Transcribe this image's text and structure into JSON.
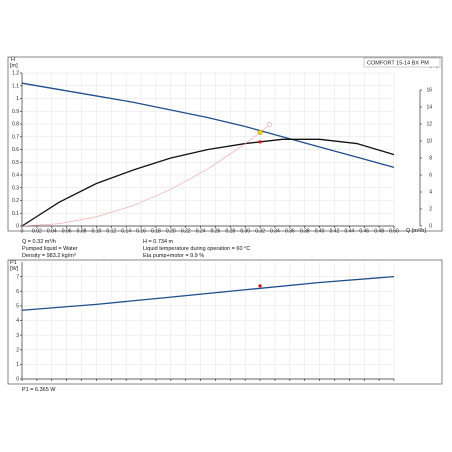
{
  "model_label": "COMFORT 15-14 BX PM",
  "top": {
    "yaxis_left_unit_top": "H",
    "yaxis_left_unit_bottom": "[m]",
    "yaxis_right_unit_top": "eta",
    "yaxis_right_unit_bottom": "[%]",
    "xaxis_unit": "Q [m³/h]",
    "info_left": [
      "Q = 0.32 m³/h",
      "Pumped liquid = Water",
      "Density = 983.2 kg/m³"
    ],
    "info_right": [
      "H = 0.734 m",
      "Liquid temperature during operation = 60 °C",
      "Eta pump+motor = 9.9 %"
    ]
  },
  "bottom": {
    "yaxis_unit_top": "P1",
    "yaxis_unit_bottom": "[W]",
    "info": "P1 = 6.365 W"
  },
  "chart_data": [
    {
      "type": "line",
      "xlim": [
        0,
        0.5
      ],
      "ylim": [
        0,
        1.2
      ],
      "ylim_right": [
        0,
        18
      ],
      "x_ticks": [
        0,
        0.02,
        0.04,
        0.06,
        0.08,
        0.1,
        0.12,
        0.14,
        0.16,
        0.18,
        0.2,
        0.22,
        0.24,
        0.26,
        0.28,
        0.3,
        0.32,
        0.34,
        0.36,
        0.38,
        0.4,
        0.42,
        0.44,
        0.46,
        0.48,
        0.5
      ],
      "x_tick_labels": [
        "0",
        "0.02",
        "0.04",
        "0.06",
        "0.08",
        "0.10",
        "0.12",
        "0.14",
        "0.16",
        "0.18",
        "0.20",
        "0.22",
        "0.24",
        "0.26",
        "0.28",
        "0.30",
        "0.32",
        "0.34",
        "0.36",
        "0.38",
        "0.40",
        "0.42",
        "0.44",
        "0.46",
        "0.48",
        "0.50"
      ],
      "y_ticks": [
        0,
        0.1,
        0.2,
        0.3,
        0.4,
        0.5,
        0.6,
        0.7,
        0.8,
        0.9,
        1.0,
        1.1,
        1.2
      ],
      "y_tick_labels": [
        "0",
        "0.1",
        "0.2",
        "0.3",
        "0.4",
        "0.5",
        "0.6",
        "0.7",
        "0.8",
        "0.9",
        "1",
        "1.1",
        "1.2"
      ],
      "y_right_ticks": [
        0,
        2,
        4,
        6,
        8,
        10,
        12,
        14,
        16
      ],
      "y_right_tick_labels": [
        "0",
        "2",
        "4",
        "6",
        "8",
        "10",
        "12",
        "14",
        "16"
      ],
      "series": [
        {
          "color": "#1f4e8c",
          "axis": "left",
          "x": [
            0,
            0.05,
            0.1,
            0.15,
            0.2,
            0.25,
            0.3,
            0.35,
            0.4,
            0.45,
            0.5
          ],
          "y": [
            1.12,
            1.07,
            1.02,
            0.97,
            0.91,
            0.85,
            0.78,
            0.7,
            0.62,
            0.54,
            0.46
          ]
        },
        {
          "color": "#111111",
          "axis": "right",
          "x": [
            0,
            0.05,
            0.1,
            0.15,
            0.2,
            0.25,
            0.3,
            0.35,
            0.4,
            0.45,
            0.5
          ],
          "y": [
            0,
            2.8,
            5.0,
            6.6,
            8.0,
            9.0,
            9.7,
            10.2,
            10.2,
            9.7,
            8.4
          ]
        },
        {
          "color": "#f0a0a0",
          "axis": "left",
          "x": [
            0,
            0.05,
            0.1,
            0.15,
            0.2,
            0.25,
            0.3,
            0.32,
            0.33
          ],
          "y": [
            0,
            0.018,
            0.072,
            0.161,
            0.287,
            0.448,
            0.645,
            0.734,
            0.78
          ]
        }
      ],
      "operating_point": {
        "x": 0.32,
        "y": 0.734,
        "eta": 9.9
      },
      "operating_point_colors": {
        "head": "#f5d20a",
        "eta": "#dd1111",
        "outline": "#f0a0a0"
      }
    },
    {
      "type": "line",
      "xlim": [
        0,
        0.5
      ],
      "ylim": [
        0,
        8
      ],
      "y_ticks": [
        0,
        1,
        2,
        3,
        4,
        5,
        6,
        7
      ],
      "y_tick_labels": [
        "0",
        "1",
        "2",
        "3",
        "4",
        "5",
        "6",
        "7"
      ],
      "series": [
        {
          "color": "#1f4e8c",
          "x": [
            0,
            0.1,
            0.2,
            0.3,
            0.4,
            0.5
          ],
          "y": [
            4.7,
            5.1,
            5.6,
            6.1,
            6.6,
            7.0
          ]
        }
      ],
      "operating_point": {
        "x": 0.32,
        "y": 6.365
      },
      "operating_point_colors": {
        "marker": "#dd1111"
      }
    }
  ]
}
